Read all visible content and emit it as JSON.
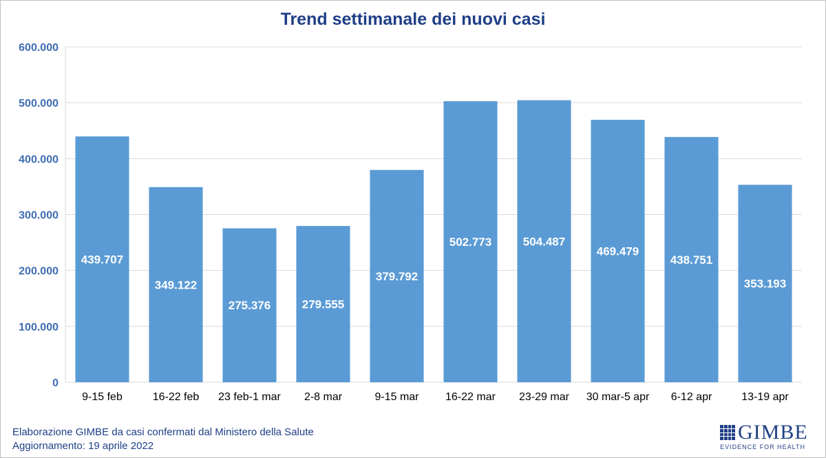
{
  "chart_data": {
    "type": "bar",
    "title": "Trend settimanale dei nuovi casi",
    "categories": [
      "9-15 feb",
      "16-22 feb",
      "23 feb-1 mar",
      "2-8 mar",
      "9-15 mar",
      "16-22 mar",
      "23-29 mar",
      "30 mar-5 apr",
      "6-12 apr",
      "13-19 apr"
    ],
    "values": [
      439707,
      349122,
      275376,
      279555,
      379792,
      502773,
      504487,
      469479,
      438751,
      353193
    ],
    "data_labels": [
      "439.707",
      "349.122",
      "275.376",
      "279.555",
      "379.792",
      "502.773",
      "504.487",
      "469.479",
      "438.751",
      "353.193"
    ],
    "y_ticks": [
      0,
      100000,
      200000,
      300000,
      400000,
      500000,
      600000
    ],
    "y_tick_labels": [
      "0",
      "100.000",
      "200.000",
      "300.000",
      "400.000",
      "500.000",
      "600.000"
    ],
    "ylim": [
      0,
      600000
    ],
    "grid": true,
    "bar_color": "#5b9bd5"
  },
  "footer": {
    "source_line": "Elaborazione GIMBE da casi confermati dal Ministero della Salute",
    "update_line": "Aggiornamento: 19 aprile 2022"
  },
  "logo": {
    "word": "GIMBE",
    "tagline": "EVIDENCE FOR HEALTH"
  },
  "colors": {
    "title": "#1f3f86",
    "axis_labels": "#3f6db3",
    "gridline": "#d9d9d9"
  }
}
